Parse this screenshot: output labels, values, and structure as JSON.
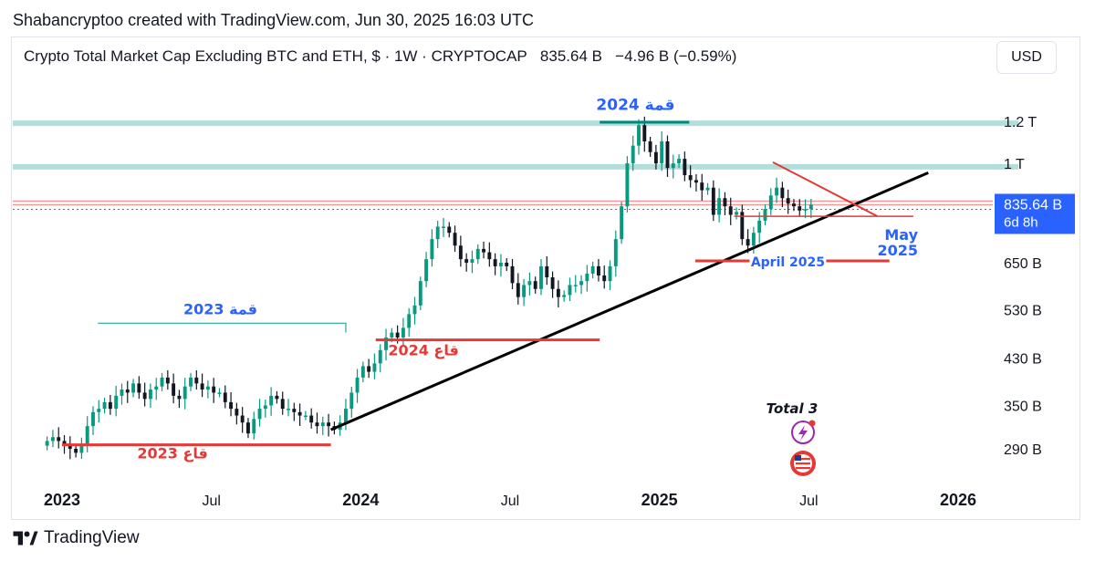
{
  "header": {
    "credit": "Shabancryptoo created with TradingView.com, Jun 30, 2025 16:03 UTC"
  },
  "symbol": {
    "name": "Crypto Total Market Cap Excluding BTC and ETH, $ · 1W · CRYPTOCAP",
    "price": "835.64 B",
    "change": "−4.96 B (−0.59%)"
  },
  "currency_button": "USD",
  "footer": {
    "brand": "TradingView"
  },
  "colors": {
    "up": "#089981",
    "down": "#131722",
    "resistance_band": "#b2dfdb",
    "annotation_blue": "#2962ff",
    "annotation_red": "#e53935",
    "trendline": "#000000",
    "price_label_bg": "#2962ff"
  },
  "chart_data": {
    "type": "candlestick",
    "title": "Crypto Total Market Cap Excluding BTC and ETH",
    "interval": "1W",
    "scale": "log",
    "y_ticks": [
      "1.2 T",
      "1 T",
      "650 B",
      "530 B",
      "430 B",
      "350 B",
      "290 B"
    ],
    "y_tick_values": [
      1200,
      1000,
      650,
      530,
      430,
      350,
      290
    ],
    "x_ticks": [
      "2023",
      "Jul",
      "2024",
      "Jul",
      "2025",
      "Jul",
      "2026"
    ],
    "x_tick_values": [
      2023.0,
      2023.5,
      2024.0,
      2024.5,
      2025.0,
      2025.5,
      2026.0
    ],
    "last_price_label": "835.64 B",
    "countdown_label": "6d 8h",
    "candle_closes": [
      300,
      305,
      300,
      295,
      290,
      285,
      295,
      320,
      340,
      345,
      355,
      345,
      365,
      375,
      370,
      385,
      370,
      360,
      375,
      380,
      395,
      385,
      365,
      360,
      380,
      395,
      385,
      375,
      380,
      370,
      370,
      355,
      345,
      335,
      325,
      310,
      330,
      345,
      350,
      365,
      360,
      345,
      345,
      340,
      335,
      335,
      325,
      320,
      325,
      320,
      315,
      325,
      345,
      370,
      395,
      415,
      405,
      420,
      445,
      470,
      480,
      470,
      490,
      520,
      540,
      600,
      660,
      720,
      760,
      760,
      740,
      700,
      660,
      650,
      660,
      690,
      680,
      660,
      640,
      650,
      640,
      595,
      560,
      590,
      600,
      580,
      640,
      610,
      580,
      560,
      565,
      590,
      590,
      600,
      620,
      640,
      615,
      600,
      640,
      720,
      830,
      1000,
      1080,
      1180,
      1100,
      1050,
      1000,
      1100,
      980,
      1000,
      1020,
      950,
      930,
      920,
      890,
      900,
      800,
      860,
      830,
      800,
      810,
      720,
      700,
      740,
      780,
      820,
      870,
      900,
      860,
      840,
      830,
      815,
      820,
      835.64
    ],
    "candle_start": 2022.95,
    "candle_step_weeks": 1,
    "resistance_levels": [
      1190,
      985
    ],
    "red_horizontal_lines": [
      {
        "name": "low_2023",
        "value": 295,
        "x_from": 2023.0,
        "x_to": 2023.9
      },
      {
        "name": "low_2024",
        "value": 465,
        "x_from": 2024.05,
        "x_to": 2024.8
      },
      {
        "name": "low_april_2025",
        "value": 655,
        "x_from": 2025.12,
        "x_to": 2025.77
      },
      {
        "name": "may_2025_support",
        "value": 795,
        "x_from": 2025.25,
        "x_to": 2025.85
      },
      {
        "name": "green_2024_top",
        "value": 1195,
        "x_from": 2024.8,
        "x_to": 2025.1
      }
    ],
    "trendline": {
      "from": [
        2023.9,
        315
      ],
      "to": [
        2025.9,
        960
      ]
    },
    "annotations": [
      {
        "id": "top_2024",
        "text": "قمة 2024",
        "color": "blue"
      },
      {
        "id": "top_2023",
        "text": "قمة 2023",
        "color": "blue"
      },
      {
        "id": "low_2024",
        "text": "قاع 2024",
        "color": "red"
      },
      {
        "id": "low_2023",
        "text": "قاع 2023",
        "color": "red"
      },
      {
        "id": "april_2025",
        "text": "April 2025",
        "color": "blue"
      },
      {
        "id": "may_2025_line1",
        "text": "May",
        "color": "blue"
      },
      {
        "id": "may_2025_line2",
        "text": "2025",
        "color": "blue"
      },
      {
        "id": "total3",
        "text": "Total 3",
        "color": "dark"
      }
    ]
  }
}
